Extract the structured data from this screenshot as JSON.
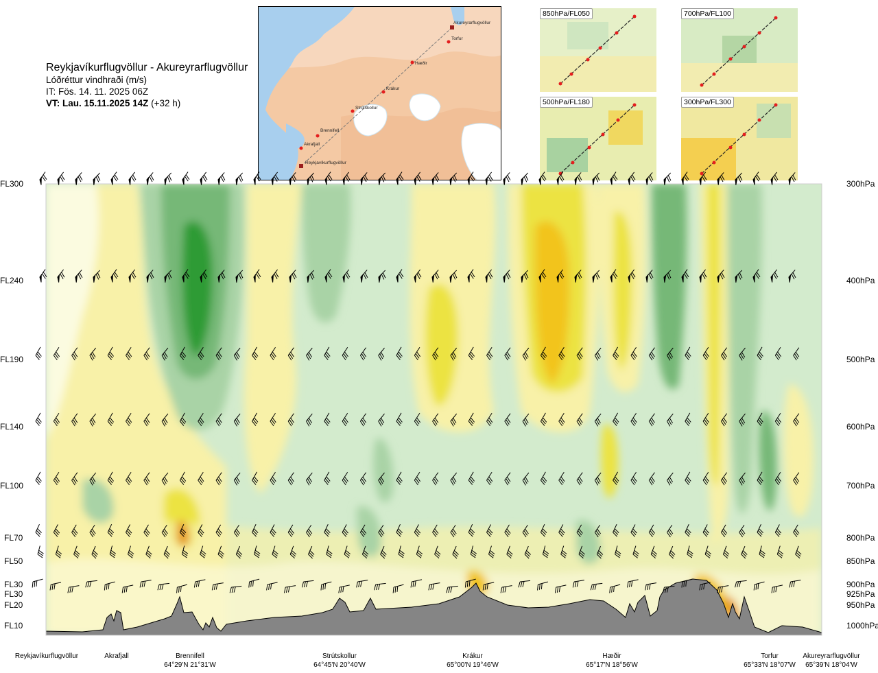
{
  "header": {
    "route_title": "Reykjavíkurflugvöllur - Akureyrarflugvöllur",
    "variable": "Lóðréttur vindhraði (m/s)",
    "issue_time": "IT: Fös. 14. 11. 2025 06Z",
    "valid_time_bold": "VT: Lau. 15.11.2025 14Z",
    "valid_time_offset": "(+32 h)"
  },
  "map": {
    "stations": [
      {
        "name": "Akureyrarflugvöllur"
      },
      {
        "name": "Torfur"
      },
      {
        "name": "Hæðir"
      },
      {
        "name": "Krákur"
      },
      {
        "name": "Strútskollur"
      },
      {
        "name": "Brennifell"
      },
      {
        "name": "Akrafjall"
      },
      {
        "name": "Reykjavíkurflugvöllur"
      }
    ]
  },
  "panels": [
    {
      "label": "850hPa/FL050"
    },
    {
      "label": "700hPa/FL100"
    },
    {
      "label": "500hPa/FL180"
    },
    {
      "label": "300hPa/FL300"
    }
  ],
  "levels": [
    {
      "fl": "FL300",
      "hpa": "300hPa"
    },
    {
      "fl": "FL240",
      "hpa": "400hPa"
    },
    {
      "fl": "FL190",
      "hpa": "500hPa"
    },
    {
      "fl": "FL140",
      "hpa": "600hPa"
    },
    {
      "fl": "FL100",
      "hpa": "700hPa"
    },
    {
      "fl": "FL70",
      "hpa": "800hPa"
    },
    {
      "fl": "FL50",
      "hpa": "850hPa"
    },
    {
      "fl": "FL30",
      "hpa": "900hPa"
    },
    {
      "fl": "FL30",
      "hpa": "925hPa"
    },
    {
      "fl": "FL20",
      "hpa": "950hPa"
    },
    {
      "fl": "FL10",
      "hpa": "1000hPa"
    }
  ],
  "route_stations": [
    {
      "name": "Reykjavíkurflugvöllur",
      "coord": ""
    },
    {
      "name": "Akrafjall",
      "coord": ""
    },
    {
      "name": "Brennifell",
      "coord": "64°29'N 21°31'W"
    },
    {
      "name": "Strútskollur",
      "coord": "64°45'N 20°40'W"
    },
    {
      "name": "Krákur",
      "coord": "65°00'N 19°46'W"
    },
    {
      "name": "Hæðir",
      "coord": "65°17'N 18°56'W"
    },
    {
      "name": "Torfur",
      "coord": "65°33'N 18°07'W"
    },
    {
      "name": "Akureyrarflugvöllur",
      "coord": "65°39'N 18°04'W"
    }
  ],
  "chart_data": {
    "type": "heatmap",
    "title": "Lóðréttur vindhraði (m/s)",
    "y_levels_hpa": [
      300,
      400,
      500,
      600,
      700,
      800,
      850,
      900,
      925,
      950,
      1000
    ],
    "colors": {
      "strong_sink": "#2e9b36",
      "sink": "#76b877",
      "weak_sink": "#a9d3a6",
      "neutral_sink": "#d3ebcd",
      "near_zero": "#fbfbe0",
      "neutral_rise": "#f8f1a8",
      "rise": "#ece343",
      "strong_rise": "#f2c41b",
      "max_rise": "#e69a1d",
      "terrain": "#858585"
    }
  }
}
